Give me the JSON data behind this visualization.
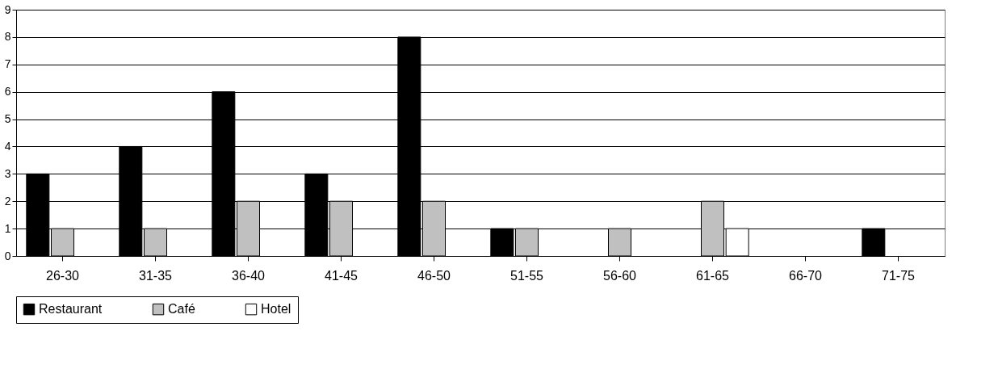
{
  "chart_data": {
    "type": "bar",
    "categories": [
      "26-30",
      "31-35",
      "36-40",
      "41-45",
      "46-50",
      "51-55",
      "56-60",
      "61-65",
      "66-70",
      "71-75"
    ],
    "series": [
      {
        "name": "Restaurant",
        "color": "#000000",
        "values": [
          3,
          4,
          6,
          3,
          8,
          1,
          null,
          null,
          null,
          1
        ]
      },
      {
        "name": "Café",
        "color": "#c0c0c0",
        "values": [
          1,
          1,
          2,
          2,
          2,
          1,
          1,
          2,
          null,
          null
        ]
      },
      {
        "name": "Hotel",
        "color": "#ffffff",
        "values": [
          null,
          null,
          null,
          null,
          null,
          null,
          null,
          1,
          null,
          null
        ]
      }
    ],
    "ylim": [
      0,
      9
    ],
    "yticks": [
      0,
      1,
      2,
      3,
      4,
      5,
      6,
      7,
      8,
      9
    ],
    "grid": "y",
    "legend": "bottom"
  }
}
